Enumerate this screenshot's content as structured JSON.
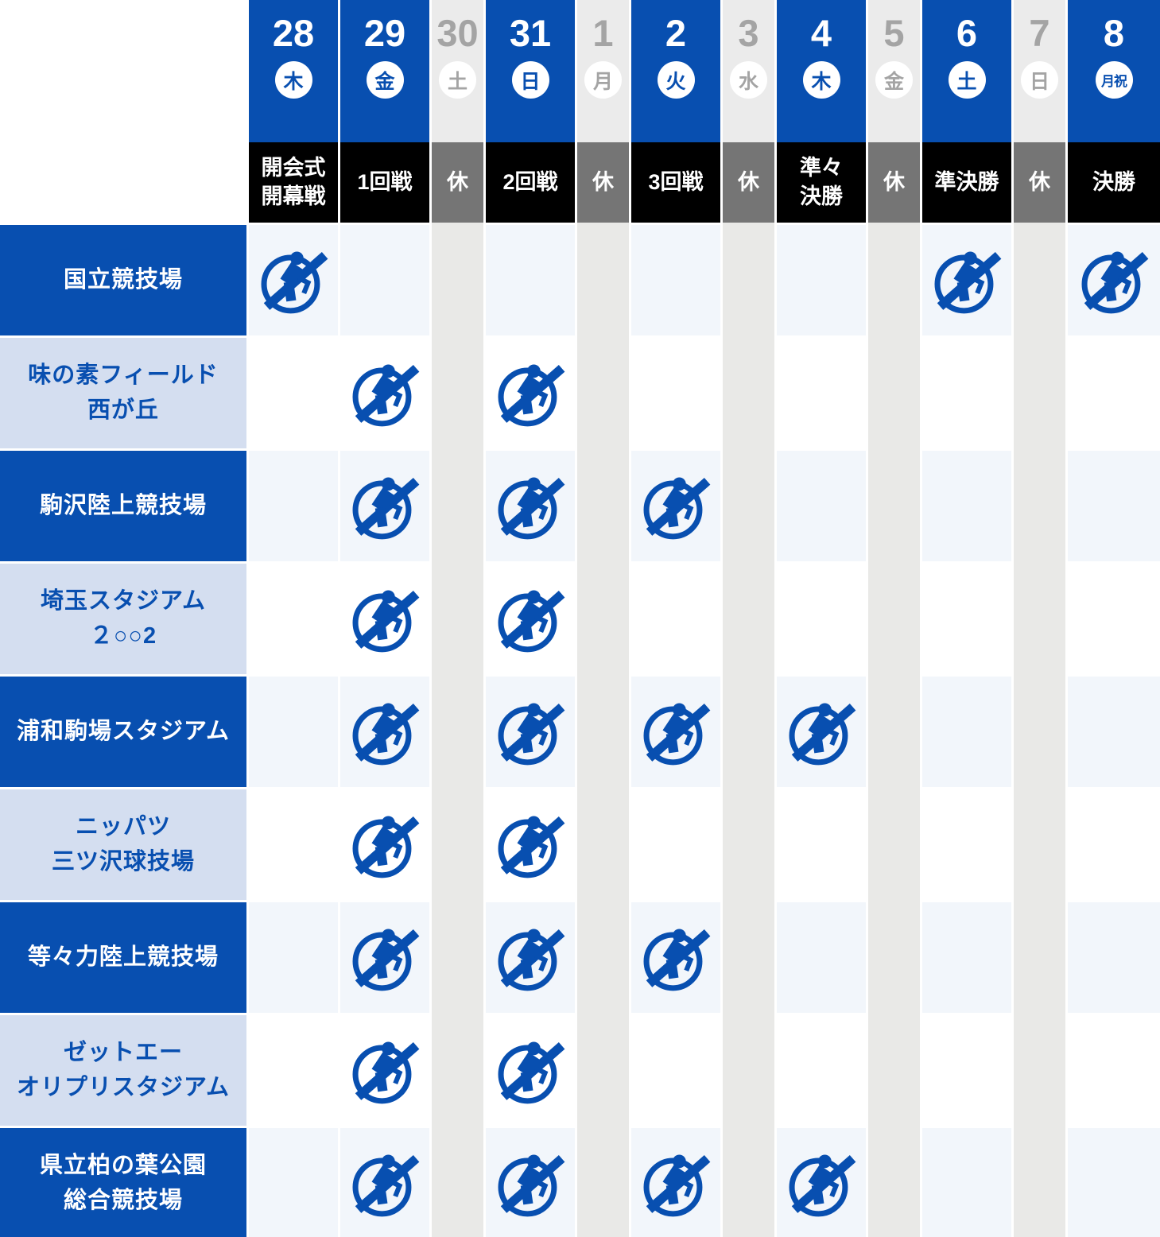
{
  "chart_data": {
    "type": "table",
    "description": "Football tournament schedule matrix: venues (rows) by dates (columns); a soccer pictogram marks match days at each venue",
    "marker_icon": "soccer-pictogram-icon",
    "legend_position": "none",
    "grid": "on",
    "colors": {
      "brand_blue": "#084fb0",
      "light_label_bg": "#d4def0",
      "match_cell_tint": "#f2f6fb",
      "rest_column_bg": "#e9e9e7",
      "rest_round_bg": "#757575",
      "round_row_bg": "#000000",
      "muted_gray_text": "#a4a4a4"
    },
    "columns": [
      {
        "date": "28",
        "day": "木",
        "type": "match",
        "round": [
          "開会式",
          "開幕戦"
        ]
      },
      {
        "date": "29",
        "day": "金",
        "type": "match",
        "round": [
          "1回戦"
        ]
      },
      {
        "date": "30",
        "day": "土",
        "type": "rest",
        "round": [
          "休"
        ]
      },
      {
        "date": "31",
        "day": "日",
        "type": "match",
        "round": [
          "2回戦"
        ]
      },
      {
        "date": "1",
        "day": "月",
        "type": "rest",
        "round": [
          "休"
        ]
      },
      {
        "date": "2",
        "day": "火",
        "type": "match",
        "round": [
          "3回戦"
        ]
      },
      {
        "date": "3",
        "day": "水",
        "type": "rest",
        "round": [
          "休"
        ]
      },
      {
        "date": "4",
        "day": "木",
        "type": "match",
        "round": [
          "準々",
          "決勝"
        ]
      },
      {
        "date": "5",
        "day": "金",
        "type": "rest",
        "round": [
          "休"
        ]
      },
      {
        "date": "6",
        "day": "土",
        "type": "match",
        "round": [
          "準決勝"
        ]
      },
      {
        "date": "7",
        "day": "日",
        "type": "rest",
        "round": [
          "休"
        ]
      },
      {
        "date": "8",
        "day": "月祝",
        "type": "match",
        "round": [
          "決勝"
        ]
      }
    ],
    "rows": [
      {
        "name": [
          "国立競技場"
        ],
        "label_style": "filled",
        "match_cols": [
          0,
          9,
          11
        ]
      },
      {
        "name": [
          "味の素フィールド",
          "西が丘"
        ],
        "label_style": "light",
        "match_cols": [
          1,
          3
        ]
      },
      {
        "name": [
          "駒沢陸上競技場"
        ],
        "label_style": "filled",
        "match_cols": [
          1,
          3,
          5
        ]
      },
      {
        "name": [
          "埼玉スタジアム",
          "２○○2"
        ],
        "label_style": "light",
        "match_cols": [
          1,
          3
        ]
      },
      {
        "name": [
          "浦和駒場スタジアム"
        ],
        "label_style": "filled",
        "match_cols": [
          1,
          3,
          5,
          7
        ]
      },
      {
        "name": [
          "ニッパツ",
          "三ツ沢球技場"
        ],
        "label_style": "light",
        "match_cols": [
          1,
          3
        ]
      },
      {
        "name": [
          "等々力陸上競技場"
        ],
        "label_style": "filled",
        "match_cols": [
          1,
          3,
          5
        ]
      },
      {
        "name": [
          "ゼットエー",
          "オリプリスタジアム"
        ],
        "label_style": "light",
        "match_cols": [
          1,
          3
        ]
      },
      {
        "name": [
          "県立柏の葉公園",
          "総合競技場"
        ],
        "label_style": "filled",
        "match_cols": [
          1,
          3,
          5,
          7
        ]
      }
    ]
  }
}
